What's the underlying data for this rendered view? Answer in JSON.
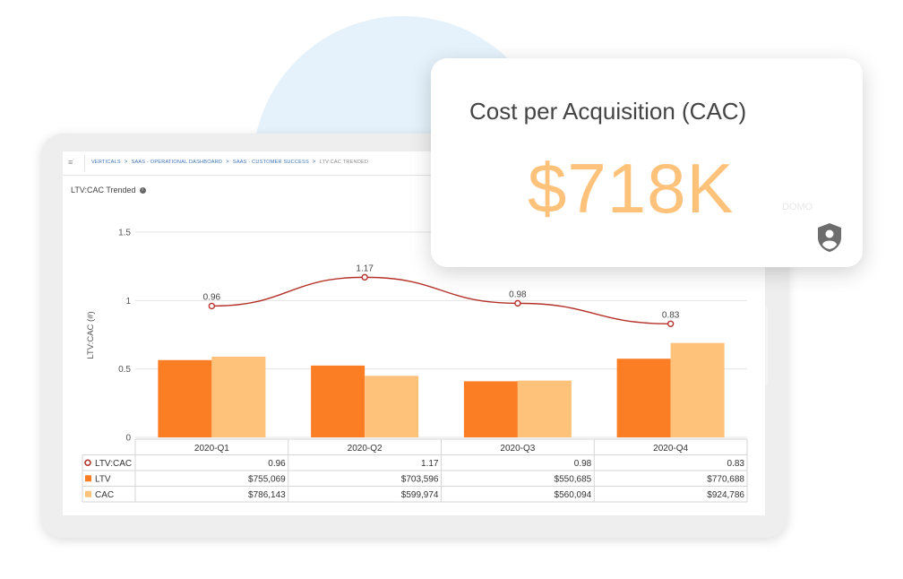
{
  "breadcrumb": {
    "items": [
      "VERTICALS",
      "SAAS - OPERATIONAL DASHBOARD",
      "SAAS - CUSTOMER SUCCESS",
      "LTV:CAC TRENDED"
    ]
  },
  "widget": {
    "title": "LTV:CAC Trended"
  },
  "kpi_card": {
    "title": "Cost per Acquisition (CAC)",
    "value": "$718K",
    "ghost_text": "DOMO"
  },
  "colors": {
    "ltv": "#fb7d24",
    "cac": "#fec27a",
    "line": "#b5322a",
    "kpi_value": "#fec27a"
  },
  "chart_data": {
    "type": "bar",
    "categories": [
      "2020-Q1",
      "2020-Q2",
      "2020-Q3",
      "2020-Q4"
    ],
    "ylabel": "LTV:CAC (#)",
    "yticks": [
      "1.5",
      "1",
      "0.5",
      "0"
    ],
    "ytick_values": [
      1.5,
      1,
      0.5,
      0
    ],
    "ylim": [
      0,
      1.5
    ],
    "series": [
      {
        "name": "LTV:CAC",
        "kind": "line",
        "values": [
          0.96,
          1.17,
          0.98,
          0.83
        ],
        "labels": [
          "0.96",
          "1.17",
          "0.98",
          "0.83"
        ]
      },
      {
        "name": "LTV",
        "kind": "bar",
        "values": [
          0.565,
          0.525,
          0.41,
          0.575
        ]
      },
      {
        "name": "CAC",
        "kind": "bar",
        "values": [
          0.59,
          0.45,
          0.415,
          0.69
        ]
      }
    ],
    "table": {
      "rows": [
        {
          "name": "LTV:CAC",
          "marker": "circle",
          "cells": [
            "0.96",
            "1.17",
            "0.98",
            "0.83"
          ]
        },
        {
          "name": "LTV",
          "marker": "square",
          "cells": [
            "$755,069",
            "$703,596",
            "$550,685",
            "$770,688"
          ]
        },
        {
          "name": "CAC",
          "marker": "square",
          "cells": [
            "$786,143",
            "$599,974",
            "$560,094",
            "$924,786"
          ]
        }
      ]
    },
    "grid": true,
    "legend": "table-below"
  }
}
